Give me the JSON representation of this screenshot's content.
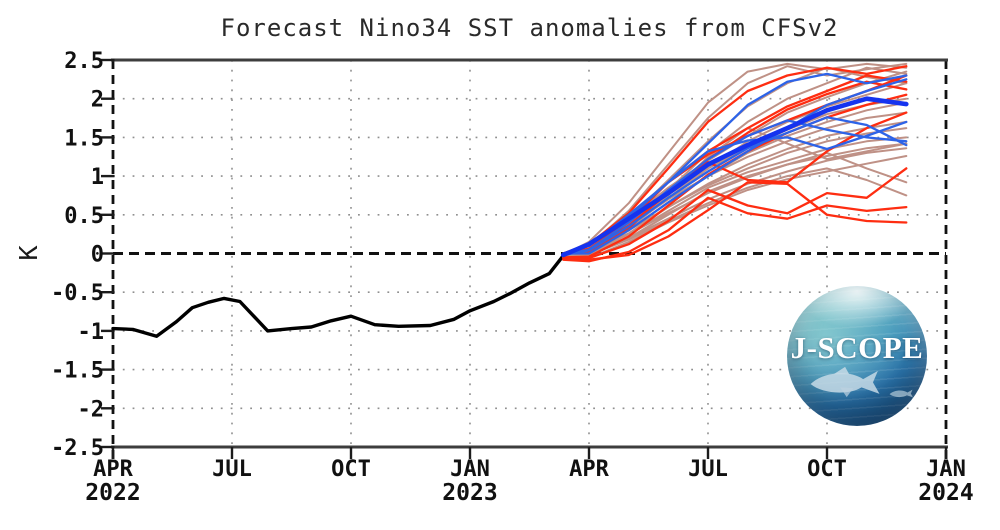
{
  "title": "Forecast Nino34 SST anomalies from CFSv2",
  "y_axis": {
    "label": "K",
    "ticks": [
      {
        "v": 2.5,
        "label": "2.5"
      },
      {
        "v": 2.0,
        "label": "2"
      },
      {
        "v": 1.5,
        "label": "1.5"
      },
      {
        "v": 1.0,
        "label": "1"
      },
      {
        "v": 0.5,
        "label": "0.5"
      },
      {
        "v": 0.0,
        "label": "0"
      },
      {
        "v": -0.5,
        "label": "-0.5"
      },
      {
        "v": -1.0,
        "label": "-1"
      },
      {
        "v": -1.5,
        "label": "-1.5"
      },
      {
        "v": -2.0,
        "label": "-2"
      },
      {
        "v": -2.5,
        "label": "-2.5"
      }
    ]
  },
  "x_axis": {
    "ticks": [
      {
        "t": 0,
        "label": "APR",
        "year": "2022"
      },
      {
        "t": 3,
        "label": "JUL",
        "year": ""
      },
      {
        "t": 6,
        "label": "OCT",
        "year": ""
      },
      {
        "t": 9,
        "label": "JAN",
        "year": "2023"
      },
      {
        "t": 12,
        "label": "APR",
        "year": ""
      },
      {
        "t": 15,
        "label": "JUL",
        "year": ""
      },
      {
        "t": 18,
        "label": "OCT",
        "year": ""
      },
      {
        "t": 21,
        "label": "JAN",
        "year": "2024"
      }
    ]
  },
  "logo": {
    "text": "J-SCOPE"
  },
  "colors": {
    "observed": "#000000",
    "mean": "#1533ef",
    "tan": "#bf9186",
    "red": "#fe2d11",
    "blue": "#2d63e8",
    "frame_solid": "#3d3d3d",
    "frame_dashed": "#111111",
    "grid_dots": "#8f8f8f",
    "axis_text": "#111111"
  },
  "chart_data": {
    "type": "line",
    "title": "Forecast Nino34 SST anomalies from CFSv2",
    "ylabel": "K",
    "ylim": [
      -2.5,
      2.5
    ],
    "xlim_months_since_apr2022": [
      0,
      21
    ],
    "x_tick_interval_months": 3,
    "grid": "dotted gray at 0.5 K and 3-month intervals; heavy dashed line at 0 K",
    "observed": {
      "name": "observed-nino34-anomaly",
      "color_key": "observed",
      "points": [
        [
          0,
          -0.97
        ],
        [
          0.5,
          -0.98
        ],
        [
          1.1,
          -1.07
        ],
        [
          1.6,
          -0.88
        ],
        [
          2.0,
          -0.7
        ],
        [
          2.4,
          -0.63
        ],
        [
          2.8,
          -0.58
        ],
        [
          3.2,
          -0.62
        ],
        [
          3.9,
          -1.0
        ],
        [
          4.5,
          -0.97
        ],
        [
          5.0,
          -0.95
        ],
        [
          5.5,
          -0.87
        ],
        [
          6.0,
          -0.81
        ],
        [
          6.6,
          -0.92
        ],
        [
          7.2,
          -0.94
        ],
        [
          8.0,
          -0.93
        ],
        [
          8.6,
          -0.85
        ],
        [
          9.0,
          -0.74
        ],
        [
          9.6,
          -0.62
        ],
        [
          10.0,
          -0.52
        ],
        [
          10.5,
          -0.38
        ],
        [
          11.0,
          -0.26
        ],
        [
          11.35,
          -0.03
        ]
      ]
    },
    "forecast_t": [
      11.35,
      12,
      13,
      14,
      15,
      16,
      17,
      18,
      19,
      20
    ],
    "ensemble_mean": {
      "name": "cfsv2-ensemble-mean",
      "color_key": "mean",
      "values": [
        -0.02,
        0.12,
        0.45,
        0.78,
        1.15,
        1.4,
        1.62,
        1.85,
        2.0,
        1.93
      ]
    },
    "members": [
      {
        "group": "tan",
        "values": [
          -0.02,
          0.15,
          0.65,
          1.3,
          1.95,
          2.35,
          2.45,
          2.38,
          2.45,
          2.4
        ]
      },
      {
        "group": "tan",
        "values": [
          -0.02,
          0.1,
          0.55,
          1.15,
          1.75,
          2.2,
          2.42,
          2.3,
          2.38,
          2.45
        ]
      },
      {
        "group": "tan",
        "values": [
          0.0,
          0.1,
          0.45,
          0.95,
          1.45,
          1.9,
          2.2,
          2.4,
          2.28,
          2.2
        ]
      },
      {
        "group": "tan",
        "values": [
          -0.02,
          0.06,
          0.38,
          0.82,
          1.3,
          1.7,
          2.0,
          2.2,
          2.4,
          2.32
        ]
      },
      {
        "group": "tan",
        "values": [
          0.0,
          0.1,
          0.45,
          0.85,
          1.2,
          1.52,
          1.82,
          2.02,
          2.2,
          2.35
        ]
      },
      {
        "group": "tan",
        "values": [
          -0.02,
          0.05,
          0.32,
          0.72,
          1.1,
          1.45,
          1.7,
          1.9,
          2.05,
          2.2
        ]
      },
      {
        "group": "tan",
        "values": [
          0.0,
          0.1,
          0.4,
          0.76,
          1.1,
          1.36,
          1.6,
          1.8,
          1.92,
          2.0
        ]
      },
      {
        "group": "tan",
        "values": [
          -0.03,
          0.04,
          0.3,
          0.66,
          1.0,
          1.3,
          1.52,
          1.7,
          1.85,
          1.95
        ]
      },
      {
        "group": "tan",
        "values": [
          0.0,
          0.08,
          0.35,
          0.7,
          1.0,
          1.25,
          1.45,
          1.62,
          1.75,
          1.82
        ]
      },
      {
        "group": "tan",
        "values": [
          -0.02,
          0.05,
          0.26,
          0.6,
          0.9,
          1.15,
          1.35,
          1.52,
          1.62,
          1.7
        ]
      },
      {
        "group": "tan",
        "values": [
          0.0,
          0.05,
          0.3,
          0.6,
          0.88,
          1.1,
          1.3,
          1.45,
          1.55,
          1.62
        ]
      },
      {
        "group": "tan",
        "values": [
          -0.04,
          0.0,
          0.25,
          0.55,
          0.85,
          1.05,
          1.2,
          1.35,
          1.45,
          1.5
        ]
      },
      {
        "group": "tan",
        "values": [
          0.0,
          0.05,
          0.2,
          0.5,
          0.8,
          1.0,
          1.15,
          1.26,
          1.36,
          1.42
        ]
      },
      {
        "group": "tan",
        "values": [
          -0.03,
          0.0,
          0.2,
          0.45,
          0.7,
          0.9,
          1.06,
          1.2,
          1.3,
          1.36
        ]
      },
      {
        "group": "tan",
        "values": [
          0.0,
          0.05,
          0.25,
          0.52,
          0.78,
          0.98,
          1.15,
          1.3,
          1.1,
          0.92
        ]
      },
      {
        "group": "tan",
        "values": [
          -0.04,
          -0.02,
          0.18,
          0.42,
          0.65,
          0.85,
          1.0,
          1.1,
          0.95,
          0.75
        ]
      },
      {
        "group": "tan",
        "values": [
          -0.05,
          -0.06,
          0.15,
          0.4,
          0.62,
          0.82,
          0.96,
          1.06,
          1.16,
          1.26
        ]
      },
      {
        "group": "tan",
        "values": [
          0.0,
          0.02,
          0.32,
          0.75,
          1.25,
          1.62,
          1.42,
          1.22,
          1.32,
          1.42
        ]
      },
      {
        "group": "red",
        "values": [
          0.0,
          0.12,
          0.52,
          1.1,
          1.7,
          2.1,
          2.3,
          2.4,
          2.32,
          2.42
        ]
      },
      {
        "group": "red",
        "values": [
          -0.02,
          0.06,
          0.42,
          0.92,
          1.32,
          1.62,
          1.9,
          2.1,
          2.3,
          2.22
        ]
      },
      {
        "group": "red",
        "values": [
          0.0,
          0.1,
          0.46,
          0.92,
          1.28,
          1.52,
          1.72,
          1.92,
          2.1,
          2.3
        ]
      },
      {
        "group": "red",
        "values": [
          -0.05,
          -0.04,
          0.22,
          0.62,
          1.02,
          1.32,
          1.56,
          1.76,
          1.92,
          2.05
        ]
      },
      {
        "group": "red",
        "values": [
          0.0,
          0.02,
          0.32,
          0.82,
          1.18,
          0.95,
          0.92,
          1.32,
          1.62,
          1.82
        ]
      },
      {
        "group": "red",
        "values": [
          -0.06,
          -0.06,
          0.12,
          0.42,
          0.82,
          0.62,
          0.52,
          0.78,
          0.72,
          1.1
        ]
      },
      {
        "group": "red",
        "values": [
          -0.08,
          -0.1,
          0.02,
          0.3,
          0.72,
          0.52,
          0.45,
          0.62,
          0.55,
          0.6
        ]
      },
      {
        "group": "red",
        "values": [
          -0.05,
          -0.08,
          -0.02,
          0.22,
          0.56,
          0.92,
          0.9,
          0.5,
          0.42,
          0.4
        ]
      },
      {
        "group": "red",
        "values": [
          0.0,
          0.06,
          0.36,
          0.78,
          1.22,
          1.56,
          1.86,
          2.06,
          2.22,
          2.12
        ]
      },
      {
        "group": "blue",
        "values": [
          0.0,
          0.1,
          0.46,
          0.92,
          1.42,
          1.92,
          2.22,
          2.32,
          2.2,
          2.3
        ]
      },
      {
        "group": "blue",
        "values": [
          -0.02,
          0.05,
          0.4,
          0.82,
          1.22,
          1.52,
          1.72,
          1.6,
          1.5,
          1.45
        ]
      },
      {
        "group": "blue",
        "values": [
          0.0,
          0.1,
          0.5,
          0.92,
          1.32,
          1.46,
          1.5,
          1.35,
          1.52,
          1.7
        ]
      },
      {
        "group": "blue",
        "values": [
          -0.02,
          0.04,
          0.35,
          0.72,
          1.06,
          1.36,
          1.56,
          1.76,
          1.66,
          1.4
        ]
      },
      {
        "group": "blue",
        "values": [
          0.0,
          0.0,
          0.3,
          0.66,
          1.0,
          1.32,
          1.62,
          1.92,
          2.1,
          2.25
        ]
      }
    ]
  }
}
